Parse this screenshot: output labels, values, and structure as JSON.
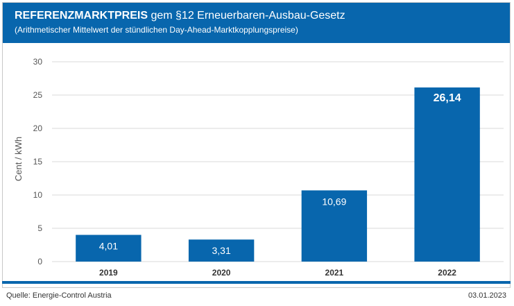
{
  "header": {
    "title_bold": "REFERENZMARKTPREIS",
    "title_rest": " gem §12 Erneuerbaren-Ausbau-Gesetz",
    "subtitle": "(Arithmetischer Mittelwert der stündlichen Day-Ahead-Marktkopplungspreise)"
  },
  "footer": {
    "source": "Quelle: Energie-Control Austria",
    "date": "03.01.2023"
  },
  "colors": {
    "accent": "#0866ad",
    "bar": "#0866ad",
    "grid": "#d9d9d9",
    "axis_text": "#555555"
  },
  "chart_data": {
    "type": "bar",
    "categories": [
      "2019",
      "2020",
      "2021",
      "2022"
    ],
    "values": [
      4.01,
      3.31,
      10.69,
      26.14
    ],
    "value_labels": [
      "4,01",
      "3,31",
      "10,69",
      "26,14"
    ],
    "highlighted_category": "2022",
    "ylabel": "Cent / kWh",
    "xlabel": "",
    "ylim": [
      0,
      30
    ],
    "yticks": [
      0,
      5,
      10,
      15,
      20,
      25,
      30
    ],
    "grid": true
  }
}
